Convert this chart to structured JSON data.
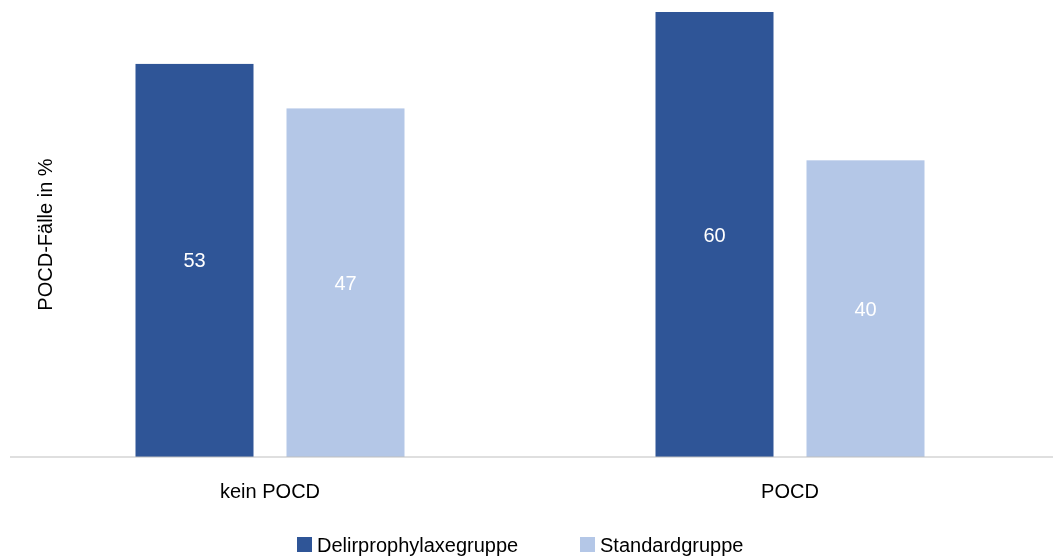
{
  "chart_data": {
    "type": "bar",
    "ylabel": "POCD-Fälle in %",
    "categories": [
      "kein POCD",
      "POCD"
    ],
    "series": [
      {
        "name": "Delirprophylaxegruppe",
        "color": "#2f5597",
        "values": [
          53,
          60
        ]
      },
      {
        "name": "Standardgruppe",
        "color": "#b4c7e7",
        "values": [
          47,
          40
        ]
      }
    ],
    "data_labels": true,
    "legend": "bottom"
  }
}
